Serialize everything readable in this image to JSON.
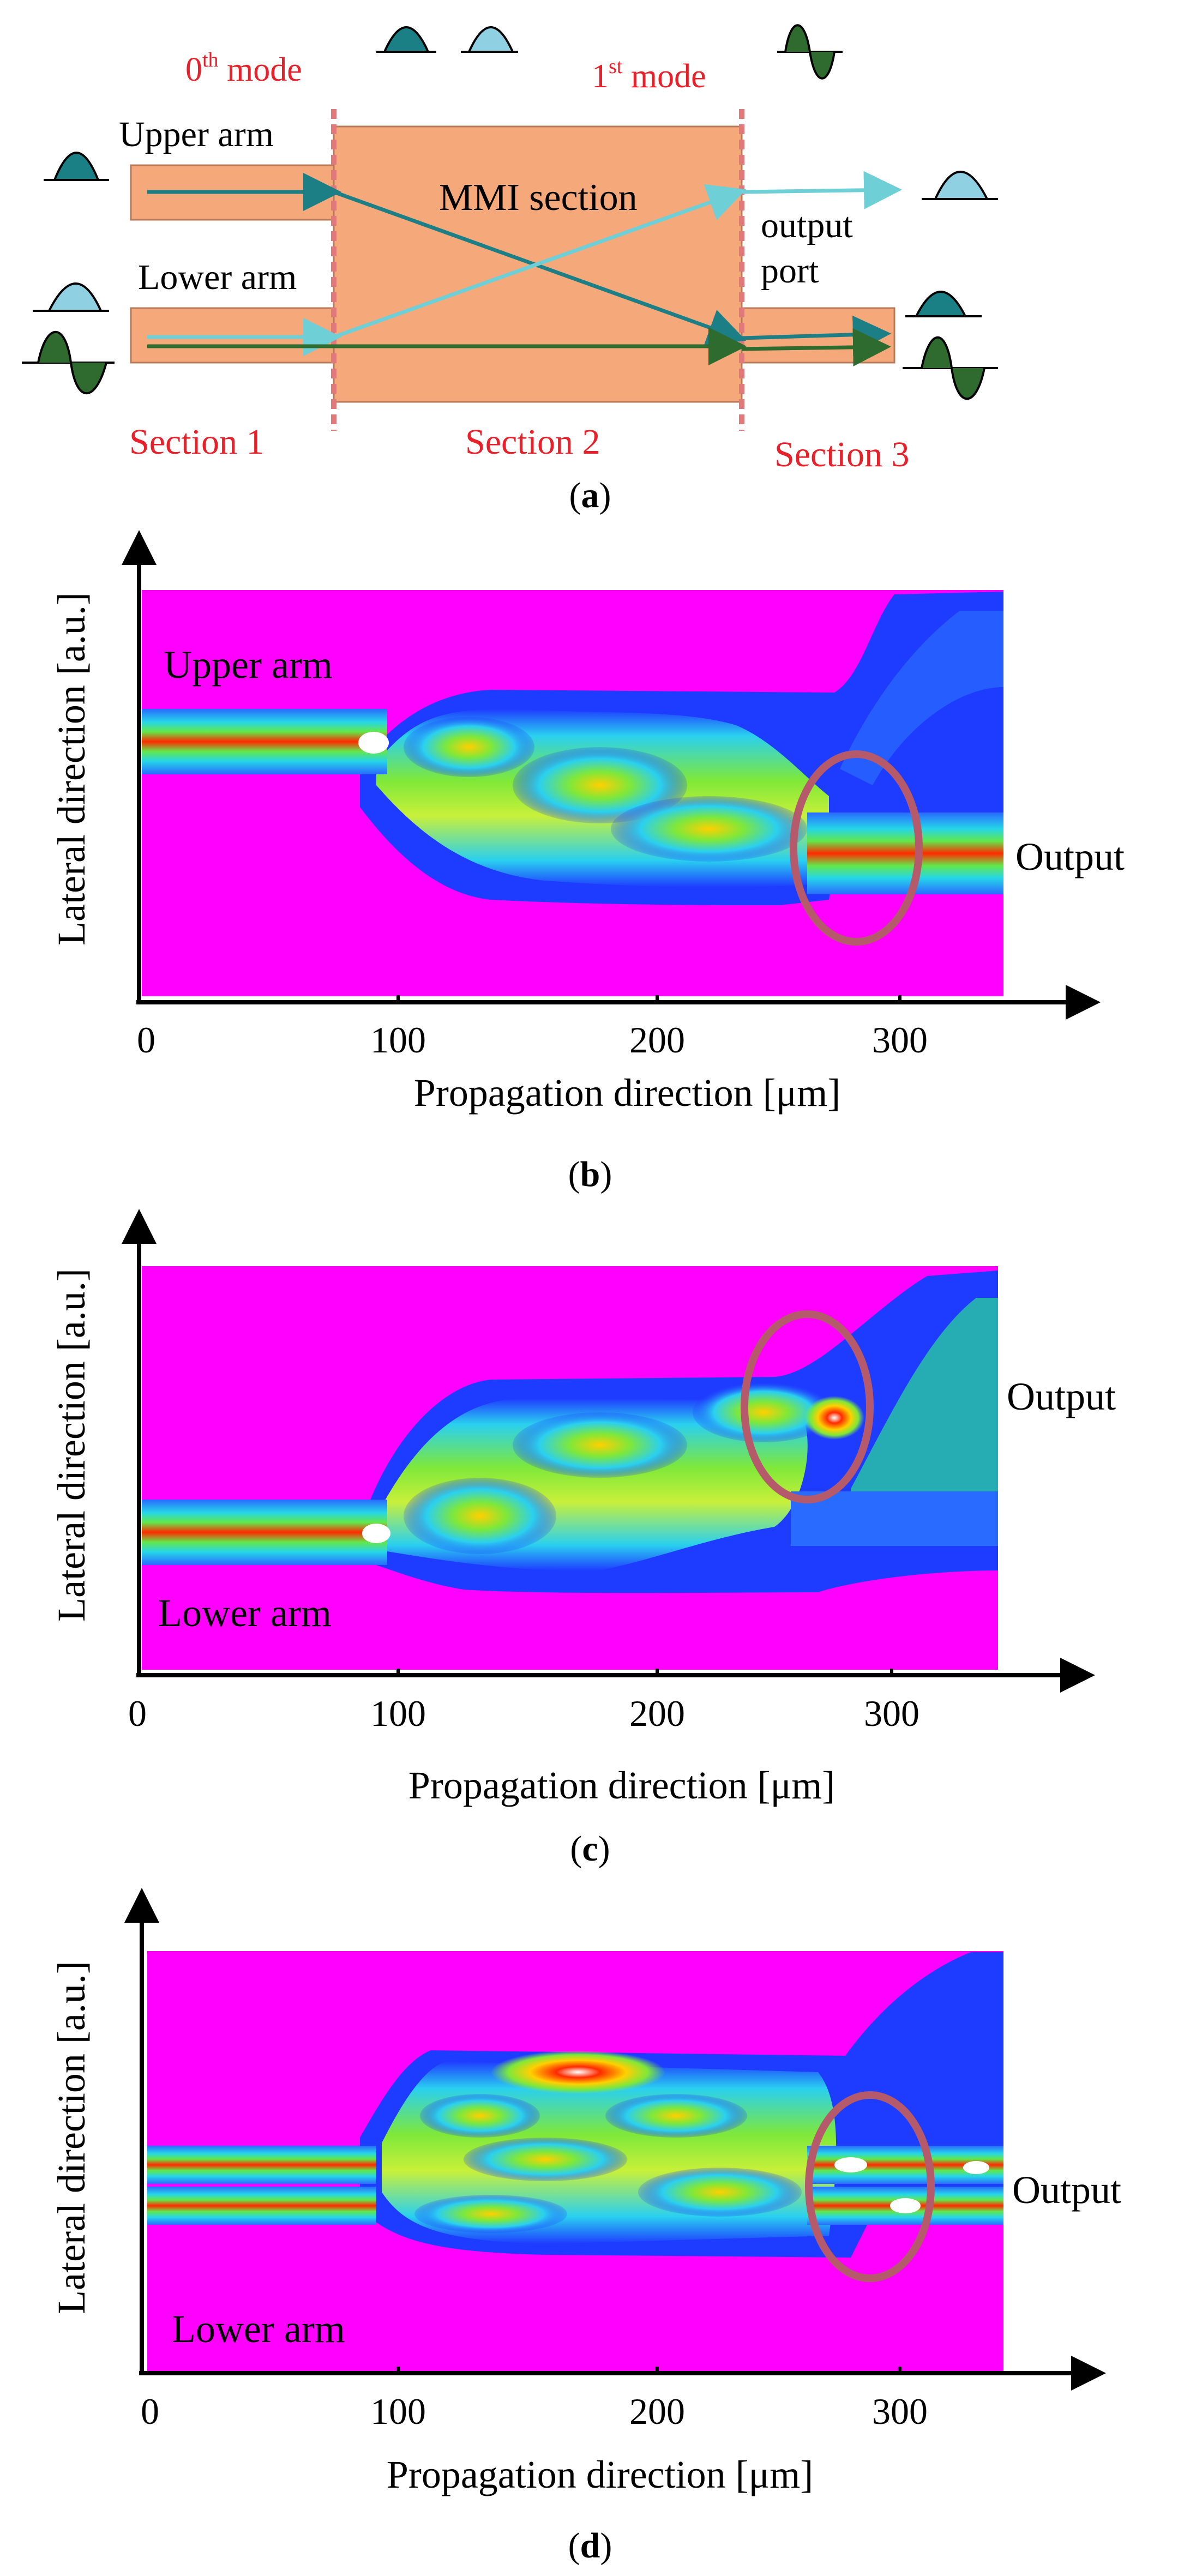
{
  "colors": {
    "mmi_fill": "#f5a97a",
    "mmi_stroke": "#b8795a",
    "section_divider": "#e07a7a",
    "red_label": "#e8202a",
    "upper_arrow": "#1c7f86",
    "lower_arrow": "#6fcfd6",
    "first_mode_arrow": "#2e6b2e",
    "mode0_wave": "#1b7f86",
    "mode0_light_wave": "#8fd0e3",
    "mode1_wave": "#2f6b2f",
    "field_background": "#ff00ff",
    "ellipse": "#b55a6a"
  },
  "panel_a": {
    "label": "(a)",
    "label_letter": "a",
    "mode0_label": "0",
    "mode0_sup": "th",
    "mode0_word": " mode",
    "mode1_label": "1",
    "mode1_sup": "st",
    "mode1_word": " mode",
    "upper_arm": "Upper arm",
    "lower_arm": "Lower arm",
    "mmi_section": "MMI section",
    "output_port_line1": "output",
    "output_port_line2": "port",
    "section1": "Section 1",
    "section2": "Section 2",
    "section3": "Section 3"
  },
  "panel_b": {
    "label_letter": "b",
    "ylabel": "Lateral direction [a.u.]",
    "xlabel": "Propagation direction [μm]",
    "ticks": [
      "0",
      "100",
      "200",
      "300"
    ],
    "arm_label": "Upper arm",
    "output_label": "Output"
  },
  "panel_c": {
    "label_letter": "c",
    "ylabel": "Lateral direction [a.u.]",
    "xlabel": "Propagation direction [μm]",
    "ticks": [
      "0",
      "100",
      "200",
      "300"
    ],
    "arm_label": "Lower arm",
    "output_label": "Output"
  },
  "panel_d": {
    "label_letter": "d",
    "ylabel": "Lateral direction [a.u.]",
    "xlabel": "Propagation direction [μm]",
    "ticks": [
      "0",
      "100",
      "200",
      "300"
    ],
    "arm_label": "Lower arm",
    "output_label": "Output"
  }
}
